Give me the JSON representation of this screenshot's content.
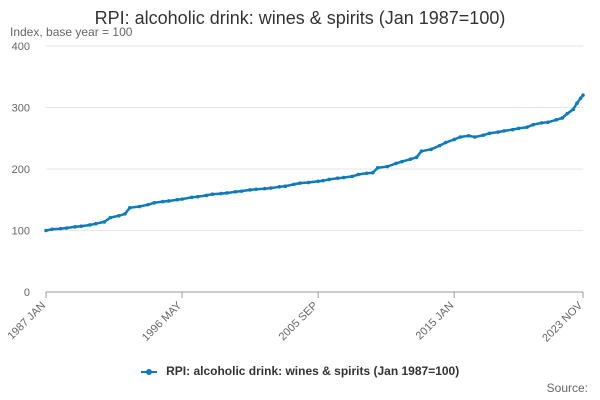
{
  "chart_data": {
    "type": "line",
    "title": "RPI: alcoholic drink: wines & spirits (Jan 1987=100)",
    "ylabel": "Index, base year = 100",
    "xlabel": "",
    "ylim": [
      0,
      400
    ],
    "y_ticks": [
      "0",
      "100",
      "200",
      "300",
      "400"
    ],
    "x_tick_labels": [
      "1987 JAN",
      "1996 MAY",
      "2005 SEP",
      "2015 JAN",
      "2023 NOV"
    ],
    "x_range": [
      "1987-01",
      "2023-11"
    ],
    "grid": "horizontal",
    "legend_position": "bottom",
    "series": [
      {
        "name": "RPI: alcoholic drink: wines & spirits (Jan 1987=100)",
        "color": "#0f7bb8",
        "points": [
          [
            "1987-01",
            100
          ],
          [
            "1987-06",
            102
          ],
          [
            "1988-01",
            103
          ],
          [
            "1988-06",
            104
          ],
          [
            "1989-01",
            106
          ],
          [
            "1989-06",
            107
          ],
          [
            "1990-01",
            109
          ],
          [
            "1990-06",
            111
          ],
          [
            "1991-01",
            114
          ],
          [
            "1991-06",
            121
          ],
          [
            "1992-01",
            124
          ],
          [
            "1992-06",
            127
          ],
          [
            "1992-10",
            137
          ],
          [
            "1993-06",
            139
          ],
          [
            "1994-01",
            142
          ],
          [
            "1994-06",
            145
          ],
          [
            "1995-01",
            147
          ],
          [
            "1995-06",
            148
          ],
          [
            "1996-01",
            150
          ],
          [
            "1996-05",
            151
          ],
          [
            "1997-01",
            154
          ],
          [
            "1997-06",
            155
          ],
          [
            "1998-01",
            157
          ],
          [
            "1998-06",
            159
          ],
          [
            "1999-01",
            160
          ],
          [
            "1999-06",
            161
          ],
          [
            "2000-01",
            163
          ],
          [
            "2000-06",
            164
          ],
          [
            "2001-01",
            166
          ],
          [
            "2001-06",
            167
          ],
          [
            "2002-01",
            168
          ],
          [
            "2002-06",
            169
          ],
          [
            "2003-01",
            171
          ],
          [
            "2003-06",
            172
          ],
          [
            "2004-01",
            175
          ],
          [
            "2004-06",
            177
          ],
          [
            "2005-01",
            178
          ],
          [
            "2005-09",
            180
          ],
          [
            "2006-01",
            181
          ],
          [
            "2006-06",
            183
          ],
          [
            "2007-01",
            185
          ],
          [
            "2007-06",
            186
          ],
          [
            "2008-01",
            188
          ],
          [
            "2008-06",
            191
          ],
          [
            "2009-01",
            193
          ],
          [
            "2009-06",
            194
          ],
          [
            "2009-10",
            202
          ],
          [
            "2010-06",
            204
          ],
          [
            "2011-01",
            209
          ],
          [
            "2011-06",
            212
          ],
          [
            "2012-01",
            216
          ],
          [
            "2012-06",
            219
          ],
          [
            "2012-10",
            229
          ],
          [
            "2013-06",
            232
          ],
          [
            "2014-01",
            238
          ],
          [
            "2014-06",
            243
          ],
          [
            "2015-01",
            248
          ],
          [
            "2015-06",
            252
          ],
          [
            "2016-01",
            254
          ],
          [
            "2016-06",
            252
          ],
          [
            "2017-01",
            255
          ],
          [
            "2017-06",
            258
          ],
          [
            "2018-01",
            260
          ],
          [
            "2018-06",
            262
          ],
          [
            "2019-01",
            264
          ],
          [
            "2019-06",
            266
          ],
          [
            "2020-01",
            268
          ],
          [
            "2020-06",
            272
          ],
          [
            "2021-01",
            275
          ],
          [
            "2021-06",
            276
          ],
          [
            "2022-01",
            280
          ],
          [
            "2022-06",
            283
          ],
          [
            "2022-10",
            290
          ],
          [
            "2023-03",
            297
          ],
          [
            "2023-06",
            307
          ],
          [
            "2023-09",
            315
          ],
          [
            "2023-11",
            320
          ]
        ]
      }
    ]
  },
  "source_label": "Source:"
}
